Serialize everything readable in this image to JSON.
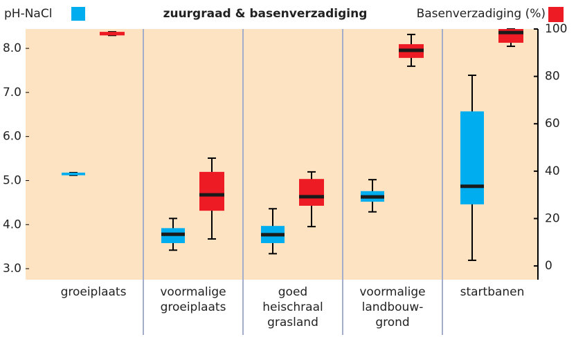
{
  "chart_data": {
    "type": "box",
    "title": "zuurgraad & basenverzadiging",
    "categories": [
      [
        "groeiplaats"
      ],
      [
        "voormalige",
        "groeiplaats"
      ],
      [
        "goed",
        "heischraal",
        "grasland"
      ],
      [
        "voormalige",
        "landbouw-",
        "grond"
      ],
      [
        "startbanen"
      ]
    ],
    "series": [
      {
        "name": "pH-NaCl",
        "color": "#00aeef",
        "values": [
          [
            5.12,
            5.12,
            5.15,
            5.18,
            5.18
          ],
          [
            3.42,
            3.58,
            3.78,
            3.92,
            4.14
          ],
          [
            3.34,
            3.58,
            3.77,
            3.97,
            4.36
          ],
          [
            4.29,
            4.52,
            4.63,
            4.76,
            5.02
          ],
          [
            3.19,
            4.46,
            4.87,
            6.57,
            7.39
          ]
        ]
      },
      {
        "name": "Basenverzadiging (%)",
        "color": "#ed1c24",
        "axis": "y2",
        "values": [
          [
            97.3,
            97.3,
            98,
            98.8,
            98.8
          ],
          [
            11.4,
            23.3,
            30.0,
            39.7,
            45.5
          ],
          [
            16.6,
            25.4,
            29.2,
            36.7,
            39.7
          ],
          [
            84.3,
            87.8,
            91.0,
            93.6,
            97.7
          ],
          [
            92.7,
            94.2,
            98.5,
            100,
            100
          ]
        ]
      }
    ],
    "ylim": [
      2.75,
      8.44
    ],
    "yticks": [
      {
        "value": 3,
        "label": "3.0"
      },
      {
        "value": 4,
        "label": "4.0"
      },
      {
        "value": 5,
        "label": "5.0"
      },
      {
        "value": 6,
        "label": "6.0"
      },
      {
        "value": 7,
        "label": "7.0"
      },
      {
        "value": 8,
        "label": "8.0"
      }
    ],
    "y2lim": [
      -5.8,
      100
    ],
    "y2ticks": [
      0,
      20,
      40,
      60,
      80,
      100
    ]
  }
}
